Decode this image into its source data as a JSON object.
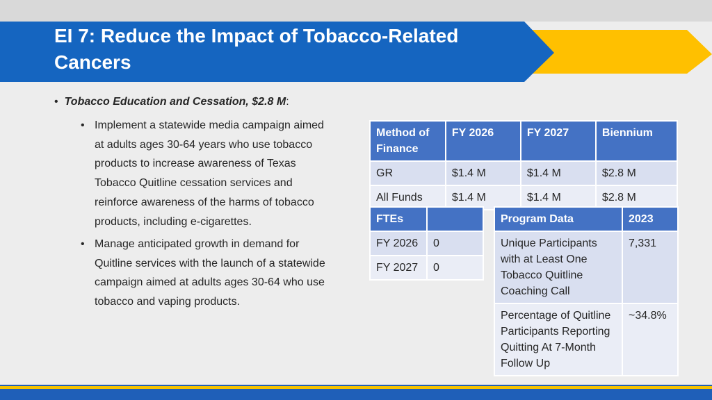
{
  "colors": {
    "banner_blue": "#1565c0",
    "banner_yellow": "#ffc000",
    "table_header": "#4472c4",
    "table_cell": "#d9dff0",
    "table_cell_alt": "#eaedf6"
  },
  "title": "EI 7: Reduce the Impact of Tobacco-Related Cancers",
  "main_bullet": {
    "label": "Tobacco Education and Cessation, $2.8 M",
    "suffix": ":"
  },
  "sub_bullets": [
    "Implement a statewide media campaign aimed at adults ages 30-64 years who use tobacco products to increase awareness of Texas Tobacco Quitline cessation services and reinforce awareness of the harms of tobacco products, including e-cigarettes.",
    "Manage anticipated growth in demand for Quitline services with the launch of a statewide campaign aimed at adults ages 30-64 who use tobacco and vaping products."
  ],
  "finance_table": {
    "headers": [
      "Method of Finance",
      "FY 2026",
      "FY 2027",
      "Biennium"
    ],
    "rows": [
      [
        "GR",
        "$1.4 M",
        "$1.4 M",
        "$2.8 M"
      ],
      [
        "All Funds",
        "$1.4 M",
        "$1.4 M",
        "$2.8 M"
      ]
    ]
  },
  "ftes_table": {
    "headers": [
      "FTEs",
      ""
    ],
    "rows": [
      [
        "FY 2026",
        "0"
      ],
      [
        "FY 2027",
        "0"
      ]
    ]
  },
  "program_table": {
    "headers": [
      "Program Data",
      "2023"
    ],
    "rows": [
      [
        "Unique Participants with at Least One Tobacco Quitline Coaching Call",
        "7,331"
      ],
      [
        "Percentage of Quitline Participants Reporting Quitting At 7-Month Follow Up",
        "~34.8%"
      ]
    ]
  }
}
